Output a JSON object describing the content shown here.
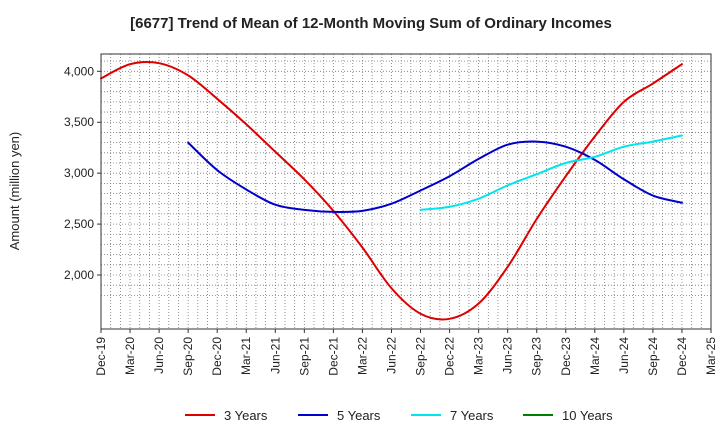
{
  "chart_data": {
    "type": "line",
    "title": "[6677]  Trend of Mean of 12-Month Moving Sum of Ordinary Incomes",
    "xlabel": "",
    "ylabel": "Amount (million yen)",
    "ylim": [
      1470,
      4170
    ],
    "yticks": [
      2000,
      2500,
      3000,
      3500,
      4000
    ],
    "ytick_labels": [
      "2,000",
      "2,500",
      "3,000",
      "3,500",
      "4,000"
    ],
    "categories": [
      "Dec-19",
      "Mar-20",
      "Jun-20",
      "Sep-20",
      "Dec-20",
      "Mar-21",
      "Jun-21",
      "Sep-21",
      "Dec-21",
      "Mar-22",
      "Jun-22",
      "Sep-22",
      "Dec-22",
      "Mar-23",
      "Jun-23",
      "Sep-23",
      "Dec-23",
      "Mar-24",
      "Jun-24",
      "Sep-24",
      "Dec-24",
      "Mar-25"
    ],
    "grid": true,
    "legend_position": "bottom",
    "series": [
      {
        "name": "3 Years",
        "color": "#dd0000",
        "values": [
          3930,
          4070,
          4080,
          3960,
          3730,
          3480,
          3210,
          2940,
          2630,
          2270,
          1870,
          1620,
          1570,
          1720,
          2080,
          2550,
          2970,
          3360,
          3700,
          3880,
          4070,
          null
        ]
      },
      {
        "name": "5 Years",
        "color": "#0000cc",
        "values": [
          null,
          null,
          null,
          3300,
          3030,
          2840,
          2690,
          2640,
          2620,
          2630,
          2700,
          2830,
          2970,
          3140,
          3280,
          3310,
          3260,
          3130,
          2940,
          2780,
          2710,
          null
        ]
      },
      {
        "name": "7 Years",
        "color": "#00e5ee",
        "values": [
          null,
          null,
          null,
          null,
          null,
          null,
          null,
          null,
          null,
          null,
          null,
          2640,
          2670,
          2750,
          2880,
          2990,
          3100,
          3160,
          3260,
          3310,
          3370,
          null
        ]
      },
      {
        "name": "10 Years",
        "color": "#008000",
        "values": [
          null,
          null,
          null,
          null,
          null,
          null,
          null,
          null,
          null,
          null,
          null,
          null,
          null,
          null,
          null,
          null,
          null,
          null,
          null,
          null,
          null,
          null
        ]
      }
    ]
  }
}
